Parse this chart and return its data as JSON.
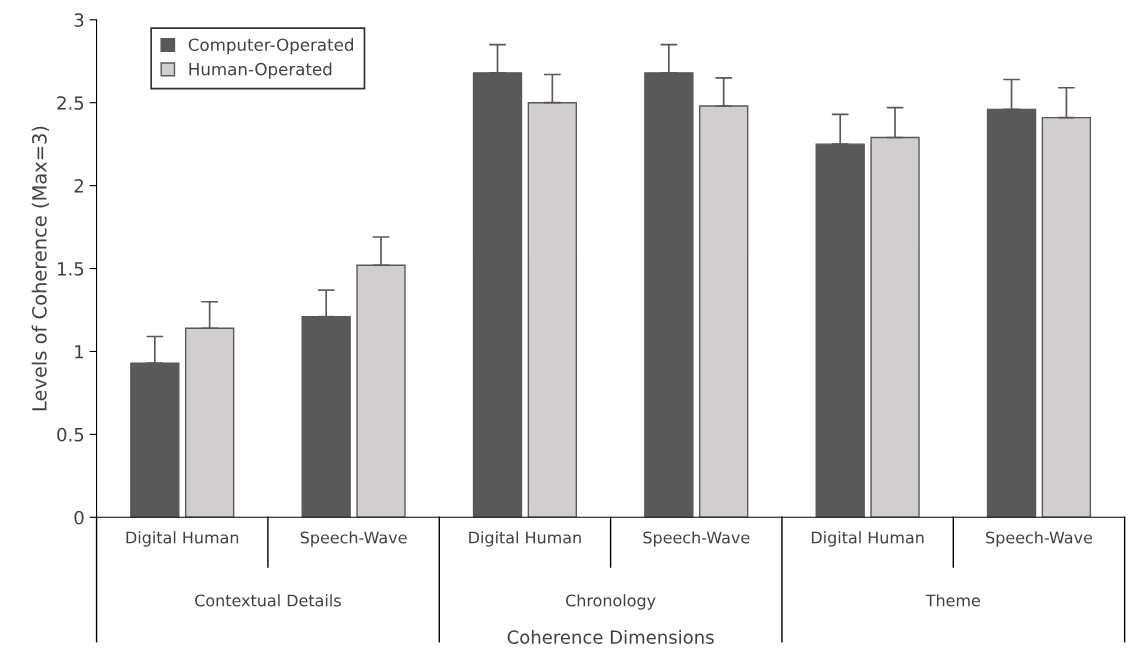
{
  "chart_data": {
    "type": "bar",
    "xlabel": "Coherence Dimensions",
    "ylabel": "Levels of Coherence (Max=3)",
    "categories": [
      "Digital Human",
      "Speech-Wave",
      "Digital Human",
      "Speech-Wave",
      "Digital Human",
      "Speech-Wave"
    ],
    "series": [
      {
        "name": "Computer-Operated",
        "color": "#595959",
        "values": [
          0.93,
          1.21,
          2.68,
          2.68,
          2.25,
          2.46
        ],
        "errors": [
          [
            0.93,
            1.09
          ],
          [
            1.21,
            1.37
          ],
          [
            2.68,
            2.85
          ],
          [
            2.68,
            2.85
          ],
          [
            2.25,
            2.43
          ],
          [
            2.46,
            2.64
          ]
        ]
      },
      {
        "name": "Human-Operated",
        "color": "#d0cece",
        "values": [
          1.14,
          1.52,
          2.5,
          2.48,
          2.29,
          2.41
        ],
        "errors": [
          [
            1.14,
            1.3
          ],
          [
            1.52,
            1.69
          ],
          [
            2.5,
            2.67
          ],
          [
            2.48,
            2.65
          ],
          [
            2.29,
            2.47
          ],
          [
            2.41,
            2.59
          ]
        ]
      }
    ],
    "annotations": [
      "Contextual Details",
      "Chronology",
      "Theme"
    ],
    "ylim": [
      0,
      3
    ],
    "yticks": [
      0,
      0.5,
      1,
      1.5,
      2,
      2.5,
      3
    ],
    "legend": "top left",
    "grid": false
  }
}
